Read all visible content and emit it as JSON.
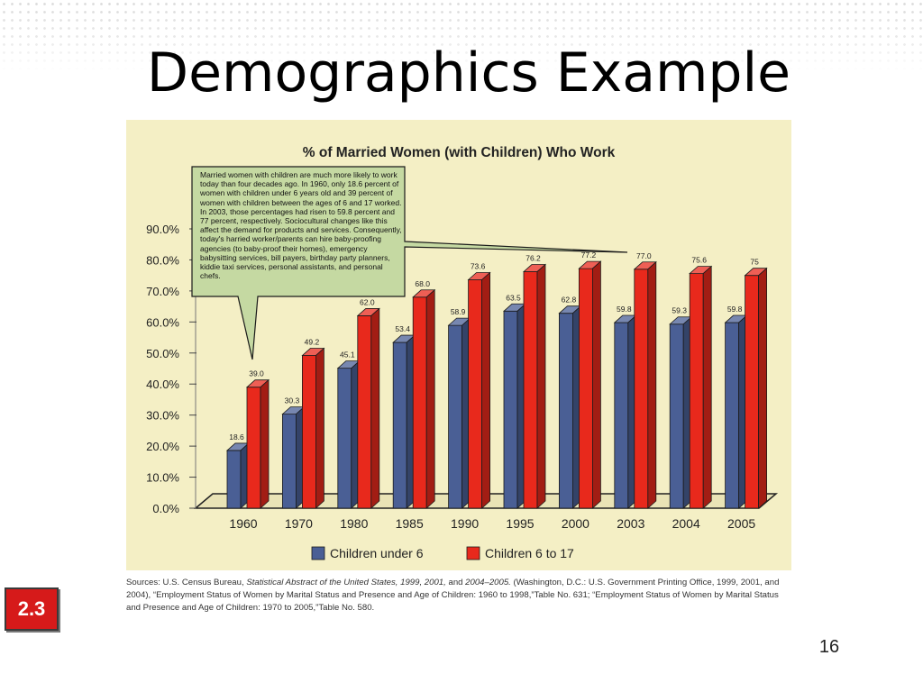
{
  "slide": {
    "title": "Demographics Example",
    "badge": "2.3",
    "page_number": "16"
  },
  "chart_data": {
    "type": "bar",
    "title": "% of Married Women (with Children) Who Work",
    "categories": [
      "1960",
      "1970",
      "1980",
      "1985",
      "1990",
      "1995",
      "2000",
      "2003",
      "2004",
      "2005"
    ],
    "series": [
      {
        "name": "Children under 6",
        "color": "#4a5f95",
        "values": [
          18.6,
          30.3,
          45.1,
          53.4,
          58.9,
          63.5,
          62.8,
          59.8,
          59.3,
          59.8
        ],
        "labels": [
          "18.6",
          "30.3",
          "45.1",
          "53.4",
          "58.9",
          "63.5",
          "62.8",
          "59.8",
          "59.3",
          "59.8"
        ]
      },
      {
        "name": "Children 6 to 17",
        "color": "#e8291c",
        "values": [
          39.0,
          49.2,
          62.0,
          68.0,
          73.6,
          76.2,
          77.2,
          77.0,
          75.6,
          75
        ],
        "labels": [
          "39.0",
          "49.2",
          "62.0",
          "68.0",
          "73.6",
          "76.2",
          "77.2",
          "77.0",
          "75.6",
          "75"
        ]
      }
    ],
    "y_ticks": [
      "0.0%",
      "10.0%",
      "20.0%",
      "30.0%",
      "40.0%",
      "50.0%",
      "60.0%",
      "70.0%",
      "80.0%",
      "90.0%"
    ],
    "ylim": [
      0,
      90
    ],
    "legend_position": "bottom",
    "callout": "Married women with children are much more likely to work today than four decades ago. In 1960, only 18.6 percent of women with children under 6 years old and 39 percent of women with children between the ages of 6 and 17 worked. In 2003, those percentages had risen to 59.8 percent and 77 percent, respectively. Sociocultural changes like this affect the demand for products and services. Consequently, today's harried worker/parents can hire baby-proofing agencies (to baby-proof their homes), emergency babysitting services, bill payers, birthday party planners, kiddie taxi services, personal assistants, and personal chefs."
  },
  "sources": {
    "p1": "Sources: U.S. Census Bureau, ",
    "p2": "Statistical Abstract of the United States, 1999, 2001,",
    "p3": " and ",
    "p4": "2004–2005.",
    "p5": " (Washington, D.C.: U.S. Government Printing Office, 1999, 2001, and 2004), “Employment Status of Women by Marital Status and Presence and Age of Children: 1960 to 1998,”Table No. 631; “Employment Status of Women by Marital Status and Presence and Age of Children: 1970 to 2005,”Table No. 580."
  },
  "colors": {
    "panel_bg": "#f4efc5",
    "callout_bg": "#c5d9a2",
    "badge_bg": "#d61a1a"
  }
}
